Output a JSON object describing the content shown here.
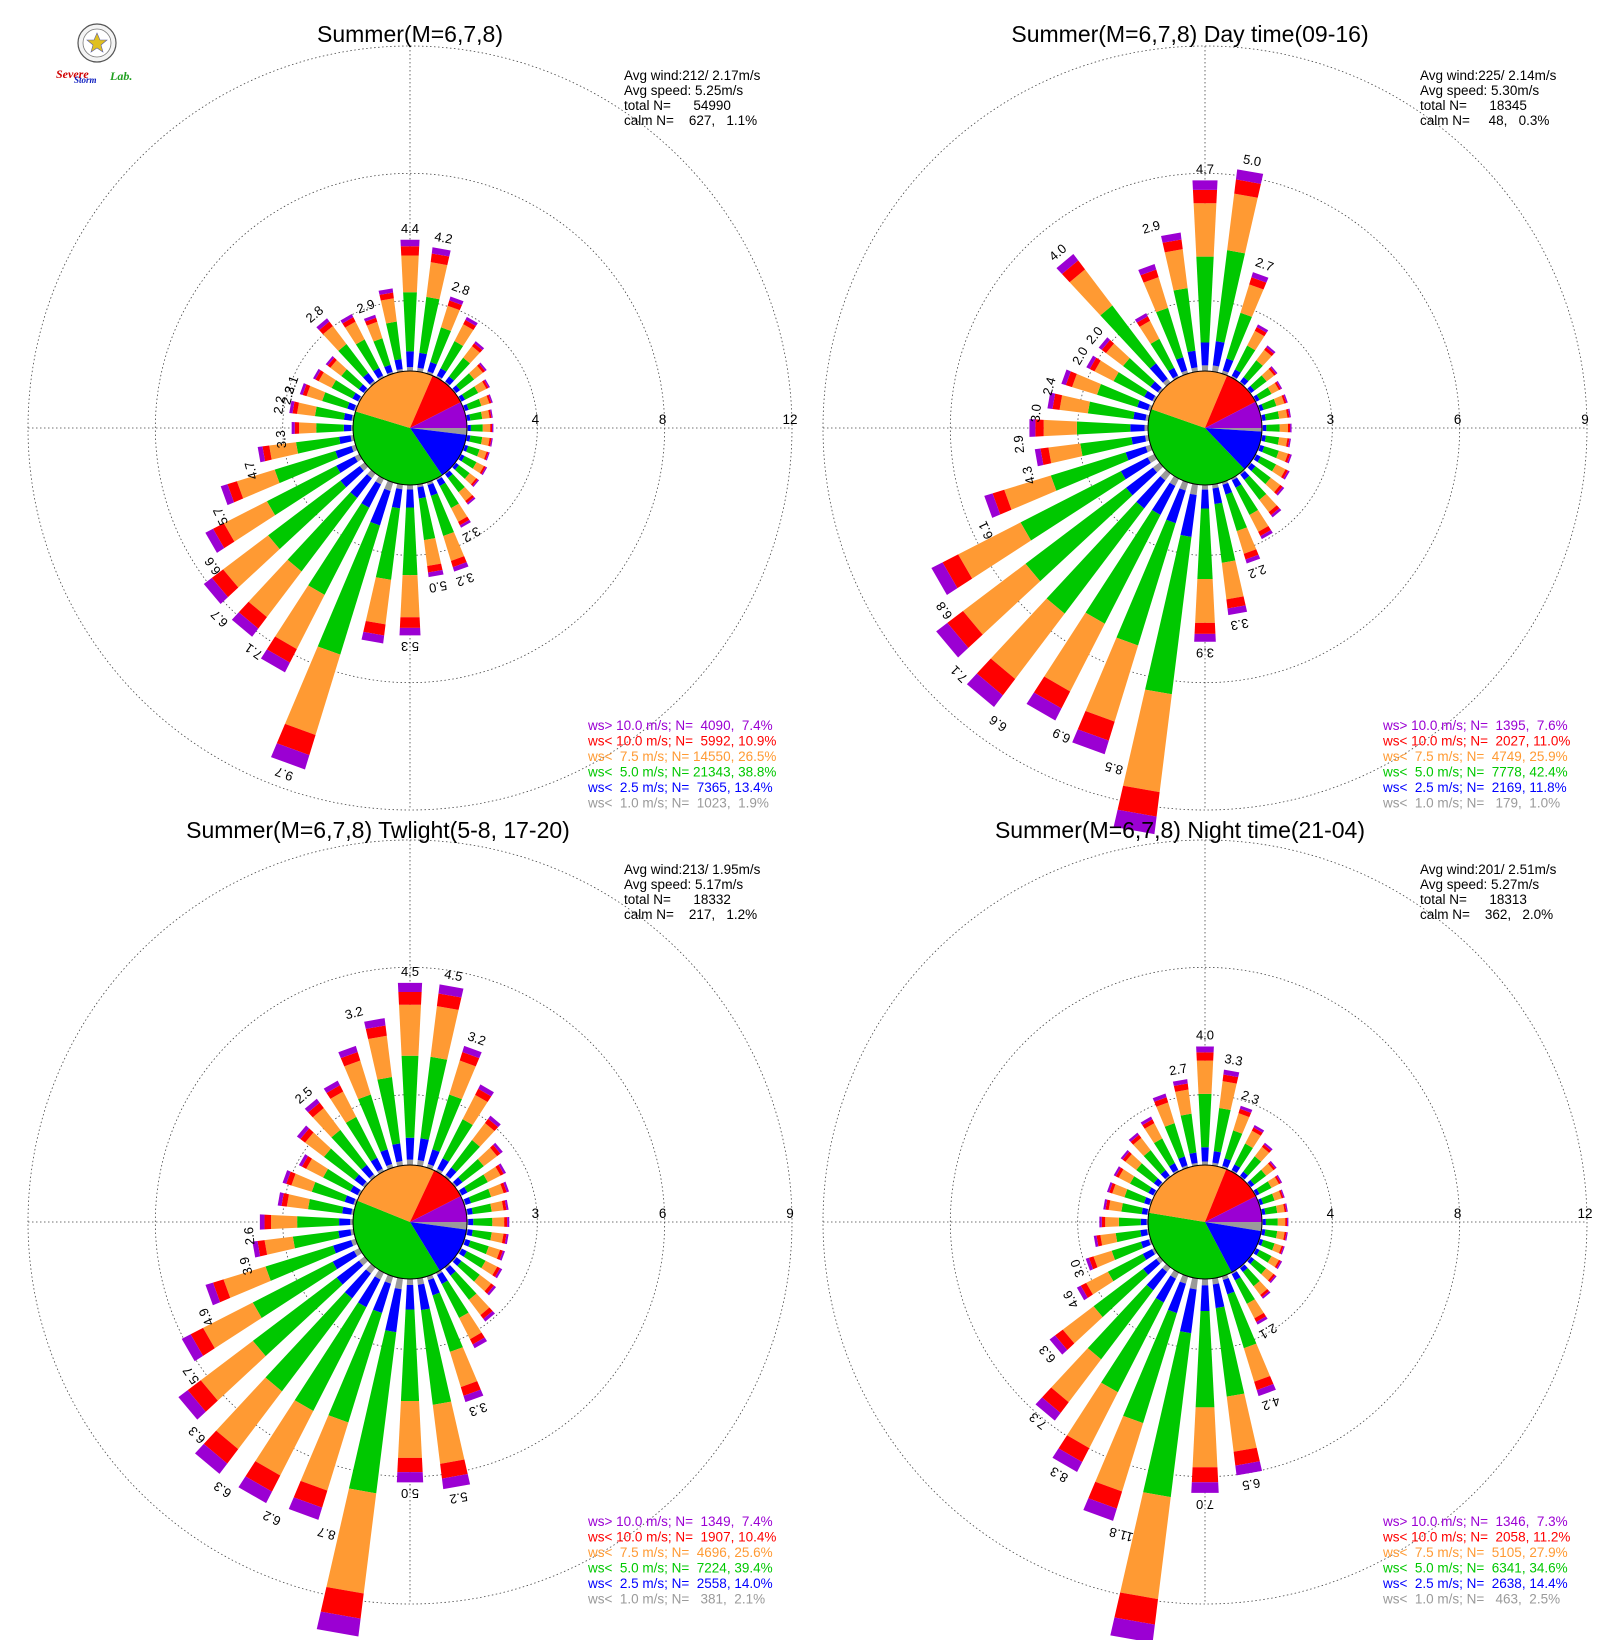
{
  "logo": {
    "text_a": "Severe",
    "text_b": "Storm",
    "text_c": "Lab."
  },
  "colors": {
    "ws_gt_10": "#9b00d3",
    "ws_lt_10": "#ff0000",
    "ws_lt_7_5": "#ff9a33",
    "ws_lt_5": "#00c800",
    "ws_lt_2_5": "#0000ff",
    "ws_lt_1": "#9a9a9a"
  },
  "chart_data": [
    {
      "type": "windrose",
      "title": "Summer(M=6,7,8)",
      "stats": [
        "Avg wind:212/ 2.17m/s",
        "Avg speed: 5.25m/s",
        "total N=      54990",
        "calm N=    627,   1.1%"
      ],
      "ring_labels": [
        "4",
        "8",
        "12"
      ],
      "rlim": [
        0,
        12
      ],
      "legend": [
        {
          "label": "ws> 10.0 m/s; N=  4090,  7.4%",
          "color": "#9b00d3"
        },
        {
          "label": "ws< 10.0 m/s; N=  5992, 10.9%",
          "color": "#ff0000"
        },
        {
          "label": "ws<  7.5 m/s; N= 14550, 26.5%",
          "color": "#ff9a33"
        },
        {
          "label": "ws<  5.0 m/s; N= 21343, 38.8%",
          "color": "#00c800"
        },
        {
          "label": "ws<  2.5 m/s; N=  7365, 13.4%",
          "color": "#0000ff"
        },
        {
          "label": "ws<  1.0 m/s; N=  1023,  1.9%",
          "color": "#9a9a9a"
        }
      ],
      "inner_pie": [
        1.9,
        13.4,
        38.8,
        26.5,
        10.9,
        7.4
      ],
      "labeled_bars": [
        {
          "dir": 0,
          "label": "4.4"
        },
        {
          "dir": 10,
          "label": "4.2"
        },
        {
          "dir": 20,
          "label": "2.8"
        },
        {
          "dir": 340,
          "label": "2.9"
        },
        {
          "dir": 320,
          "label": "2.8"
        },
        {
          "dir": 290,
          "label": "2.1"
        },
        {
          "dir": 285,
          "label": "2.3"
        },
        {
          "dir": 280,
          "label": "2.2"
        },
        {
          "dir": 265,
          "label": "3.3"
        },
        {
          "dir": 255,
          "label": "4.7"
        },
        {
          "dir": 245,
          "label": "5.7"
        },
        {
          "dir": 235,
          "label": "6.6"
        },
        {
          "dir": 225,
          "label": "6.7"
        },
        {
          "dir": 215,
          "label": "7.1"
        },
        {
          "dir": 200,
          "label": "9.7"
        },
        {
          "dir": 180,
          "label": "5.3"
        },
        {
          "dir": 170,
          "label": "5.0"
        },
        {
          "dir": 160,
          "label": "3.2"
        },
        {
          "dir": 150,
          "label": "3.2"
        }
      ],
      "bars": [
        4.4,
        4.2,
        2.8,
        2.4,
        1.9,
        1.5,
        1.3,
        1.2,
        1.1,
        1.1,
        1.1,
        1.1,
        1.2,
        1.2,
        1.5,
        2.0,
        3.2,
        3.2,
        5.0,
        5.3,
        9.7,
        7.1,
        6.7,
        6.6,
        5.7,
        4.7,
        3.3,
        2.2,
        2.3,
        2.1,
        1.9,
        1.8,
        2.8,
        2.5,
        2.2,
        2.9
      ]
    },
    {
      "type": "windrose",
      "title": "Summer(M=6,7,8) Day time(09-16)",
      "stats": [
        "Avg wind:225/ 2.14m/s",
        "Avg speed: 5.30m/s",
        "total N=      18345",
        "calm N=     48,   0.3%"
      ],
      "ring_labels": [
        "3",
        "6",
        "9"
      ],
      "rlim": [
        0,
        9
      ],
      "legend": [
        {
          "label": "ws> 10.0 m/s; N=  1395,  7.6%",
          "color": "#9b00d3"
        },
        {
          "label": "ws< 10.0 m/s; N=  2027, 11.0%",
          "color": "#ff0000"
        },
        {
          "label": "ws<  7.5 m/s; N=  4749, 25.9%",
          "color": "#ff9a33"
        },
        {
          "label": "ws<  5.0 m/s; N=  7778, 42.4%",
          "color": "#00c800"
        },
        {
          "label": "ws<  2.5 m/s; N=  2169, 11.8%",
          "color": "#0000ff"
        },
        {
          "label": "ws<  1.0 m/s; N=   179,  1.0%",
          "color": "#9a9a9a"
        }
      ],
      "inner_pie": [
        1.0,
        11.8,
        42.4,
        25.9,
        11.0,
        7.6
      ],
      "labeled_bars": [
        {
          "dir": 0,
          "label": "4.7"
        },
        {
          "dir": 10,
          "label": "5.0"
        },
        {
          "dir": 20,
          "label": "2.7"
        },
        {
          "dir": 345,
          "label": "2.9"
        },
        {
          "dir": 320,
          "label": "4.0"
        },
        {
          "dir": 310,
          "label": "2.0"
        },
        {
          "dir": 300,
          "label": "2.0"
        },
        {
          "dir": 285,
          "label": "2.4"
        },
        {
          "dir": 275,
          "label": "3.0"
        },
        {
          "dir": 265,
          "label": "2.9"
        },
        {
          "dir": 255,
          "label": "4.3"
        },
        {
          "dir": 245,
          "label": "6.1"
        },
        {
          "dir": 235,
          "label": "6.8"
        },
        {
          "dir": 225,
          "label": "7.1"
        },
        {
          "dir": 215,
          "label": "6.6"
        },
        {
          "dir": 205,
          "label": "6.9"
        },
        {
          "dir": 195,
          "label": "8.5"
        },
        {
          "dir": 180,
          "label": "3.9"
        },
        {
          "dir": 170,
          "label": "3.3"
        },
        {
          "dir": 160,
          "label": "2.2"
        }
      ],
      "bars": [
        4.7,
        5.0,
        2.7,
        1.6,
        1.3,
        1.0,
        0.9,
        0.9,
        0.9,
        0.9,
        0.9,
        1.0,
        1.1,
        1.2,
        1.5,
        1.8,
        2.2,
        3.3,
        3.9,
        8.5,
        6.9,
        6.6,
        7.1,
        6.8,
        6.1,
        4.3,
        2.9,
        3.0,
        2.6,
        2.4,
        2.0,
        2.0,
        4.0,
        1.9,
        2.9,
        3.5
      ]
    },
    {
      "type": "windrose",
      "title": "Summer(M=6,7,8) Twlight(5-8, 17-20)",
      "stats": [
        "Avg wind:213/ 1.95m/s",
        "Avg speed: 5.17m/s",
        "total N=      18332",
        "calm N=    217,   1.2%"
      ],
      "ring_labels": [
        "3",
        "6",
        "9"
      ],
      "rlim": [
        0,
        9
      ],
      "legend": [
        {
          "label": "ws> 10.0 m/s; N=  1349,  7.4%",
          "color": "#9b00d3"
        },
        {
          "label": "ws< 10.0 m/s; N=  1907, 10.4%",
          "color": "#ff0000"
        },
        {
          "label": "ws<  7.5 m/s; N=  4696, 25.6%",
          "color": "#ff9a33"
        },
        {
          "label": "ws<  5.0 m/s; N=  7224, 39.4%",
          "color": "#00c800"
        },
        {
          "label": "ws<  2.5 m/s; N=  2558, 14.0%",
          "color": "#0000ff"
        },
        {
          "label": "ws<  1.0 m/s; N=   381,  2.1%",
          "color": "#9a9a9a"
        }
      ],
      "inner_pie": [
        2.1,
        14.0,
        39.4,
        25.6,
        10.4,
        7.4
      ],
      "labeled_bars": [
        {
          "dir": 0,
          "label": "4.5"
        },
        {
          "dir": 10,
          "label": "4.5"
        },
        {
          "dir": 20,
          "label": "3.2"
        },
        {
          "dir": 345,
          "label": "3.2"
        },
        {
          "dir": 320,
          "label": "2.5"
        },
        {
          "dir": 265,
          "label": "2.6"
        },
        {
          "dir": 255,
          "label": "3.9"
        },
        {
          "dir": 245,
          "label": "4.9"
        },
        {
          "dir": 235,
          "label": "5.7"
        },
        {
          "dir": 225,
          "label": "6.3"
        },
        {
          "dir": 215,
          "label": "6.3"
        },
        {
          "dir": 205,
          "label": "6.2"
        },
        {
          "dir": 195,
          "label": "8.7"
        },
        {
          "dir": 180,
          "label": "5.0"
        },
        {
          "dir": 170,
          "label": "5.2"
        },
        {
          "dir": 160,
          "label": "3.3"
        }
      ],
      "bars": [
        4.5,
        4.5,
        3.2,
        2.5,
        2.0,
        1.6,
        1.4,
        1.3,
        1.2,
        1.2,
        1.2,
        1.2,
        1.3,
        1.4,
        1.8,
        2.2,
        3.3,
        5.2,
        5.0,
        8.7,
        6.2,
        6.3,
        6.3,
        5.7,
        4.9,
        3.9,
        2.6,
        2.4,
        2.0,
        2.0,
        1.8,
        2.2,
        2.5,
        2.6,
        3.2,
        3.7
      ]
    },
    {
      "type": "windrose",
      "title": "Summer(M=6,7,8) Night time(21-04)",
      "stats": [
        "Avg wind:201/ 2.51m/s",
        "Avg speed: 5.27m/s",
        "total N=      18313",
        "calm N=    362,   2.0%"
      ],
      "ring_labels": [
        "4",
        "8",
        "12"
      ],
      "rlim": [
        0,
        12
      ],
      "legend": [
        {
          "label": "ws> 10.0 m/s; N=  1346,  7.3%",
          "color": "#9b00d3"
        },
        {
          "label": "ws< 10.0 m/s; N=  2058, 11.2%",
          "color": "#ff0000"
        },
        {
          "label": "ws<  7.5 m/s; N=  5105, 27.9%",
          "color": "#ff9a33"
        },
        {
          "label": "ws<  5.0 m/s; N=  6341, 34.6%",
          "color": "#00c800"
        },
        {
          "label": "ws<  2.5 m/s; N=  2638, 14.4%",
          "color": "#0000ff"
        },
        {
          "label": "ws<  1.0 m/s; N=   463,  2.5%",
          "color": "#9a9a9a"
        }
      ],
      "inner_pie": [
        2.5,
        14.4,
        34.6,
        27.9,
        11.2,
        7.3
      ],
      "labeled_bars": [
        {
          "dir": 0,
          "label": "4.0"
        },
        {
          "dir": 10,
          "label": "3.3"
        },
        {
          "dir": 20,
          "label": "2.3"
        },
        {
          "dir": 350,
          "label": "2.7"
        },
        {
          "dir": 250,
          "label": "3.0"
        },
        {
          "dir": 240,
          "label": "4.6"
        },
        {
          "dir": 230,
          "label": "6.3"
        },
        {
          "dir": 220,
          "label": "7.3"
        },
        {
          "dir": 210,
          "label": "8.3"
        },
        {
          "dir": 195,
          "label": "11.8"
        },
        {
          "dir": 180,
          "label": "7.0"
        },
        {
          "dir": 170,
          "label": "6.5"
        },
        {
          "dir": 160,
          "label": "4.2"
        },
        {
          "dir": 150,
          "label": "2.1"
        }
      ],
      "bars": [
        4.0,
        3.3,
        2.3,
        1.9,
        1.6,
        1.3,
        1.2,
        1.1,
        1.1,
        1.1,
        1.1,
        1.1,
        1.2,
        1.3,
        1.5,
        2.1,
        4.2,
        6.5,
        7.0,
        11.8,
        8.3,
        7.3,
        6.3,
        4.6,
        3.0,
        2.4,
        2.0,
        1.8,
        1.7,
        1.7,
        1.7,
        1.8,
        2.0,
        2.2,
        2.7,
        3.0
      ]
    }
  ]
}
